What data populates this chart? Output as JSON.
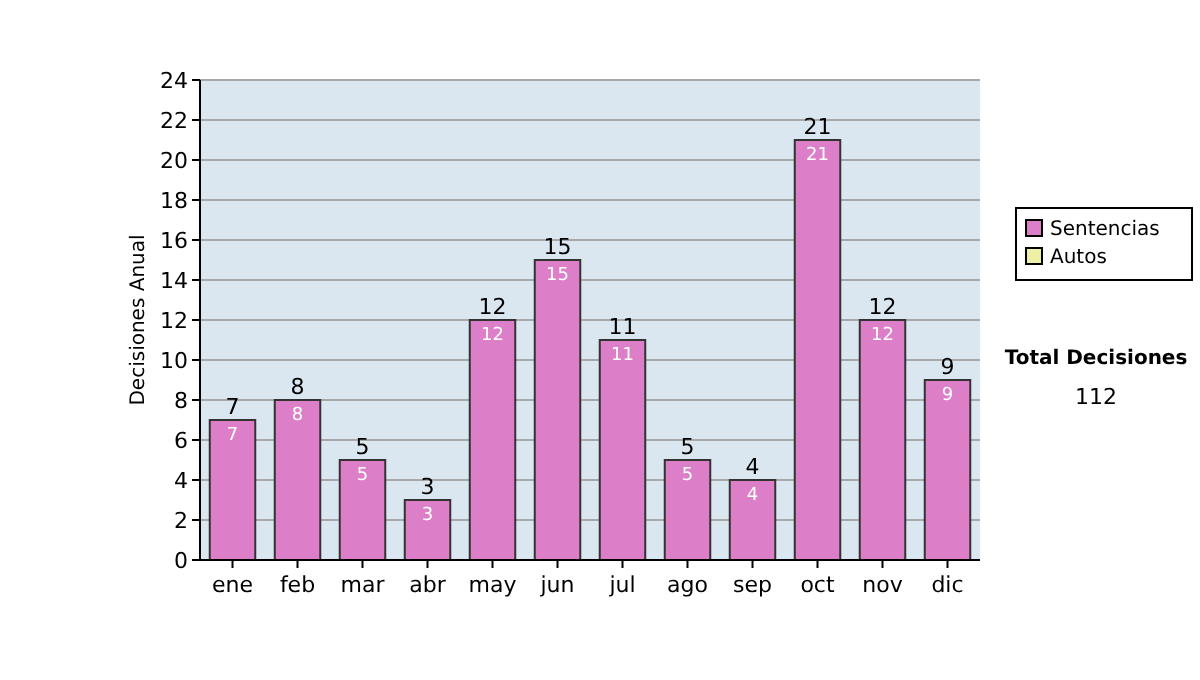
{
  "chart_data": {
    "type": "bar",
    "ylabel": "Decisiones Anual",
    "categories": [
      "ene",
      "feb",
      "mar",
      "abr",
      "may",
      "jun",
      "jul",
      "ago",
      "sep",
      "oct",
      "nov",
      "dic"
    ],
    "series": [
      {
        "name": "Sentencias",
        "color": "#dd7fc8",
        "values": [
          7,
          8,
          5,
          3,
          12,
          15,
          11,
          5,
          4,
          21,
          12,
          9
        ],
        "value_labels": [
          "7",
          "8",
          "5",
          "3",
          "12",
          "15",
          "11",
          "5",
          "4",
          "21",
          "12",
          "9"
        ]
      },
      {
        "name": "Autos",
        "color": "#eef0a8",
        "values": [
          0,
          0,
          0,
          0,
          0,
          0,
          0,
          0,
          0,
          0,
          0,
          0
        ],
        "value_labels": [
          null,
          null,
          null,
          null,
          null,
          null,
          null,
          null,
          null,
          null,
          null,
          null
        ]
      }
    ],
    "stacked": true,
    "totals": [
      "7",
      "8",
      "5",
      "3",
      "12",
      "15",
      "11",
      "5",
      "4",
      "21",
      "12",
      "9"
    ],
    "ylim": [
      0,
      24
    ],
    "yticks": [
      0,
      2,
      4,
      6,
      8,
      10,
      12,
      14,
      16,
      18,
      20,
      22,
      24
    ],
    "grid": "y",
    "legend": "right",
    "annotations": [
      "Total Decisiones",
      "112"
    ]
  }
}
